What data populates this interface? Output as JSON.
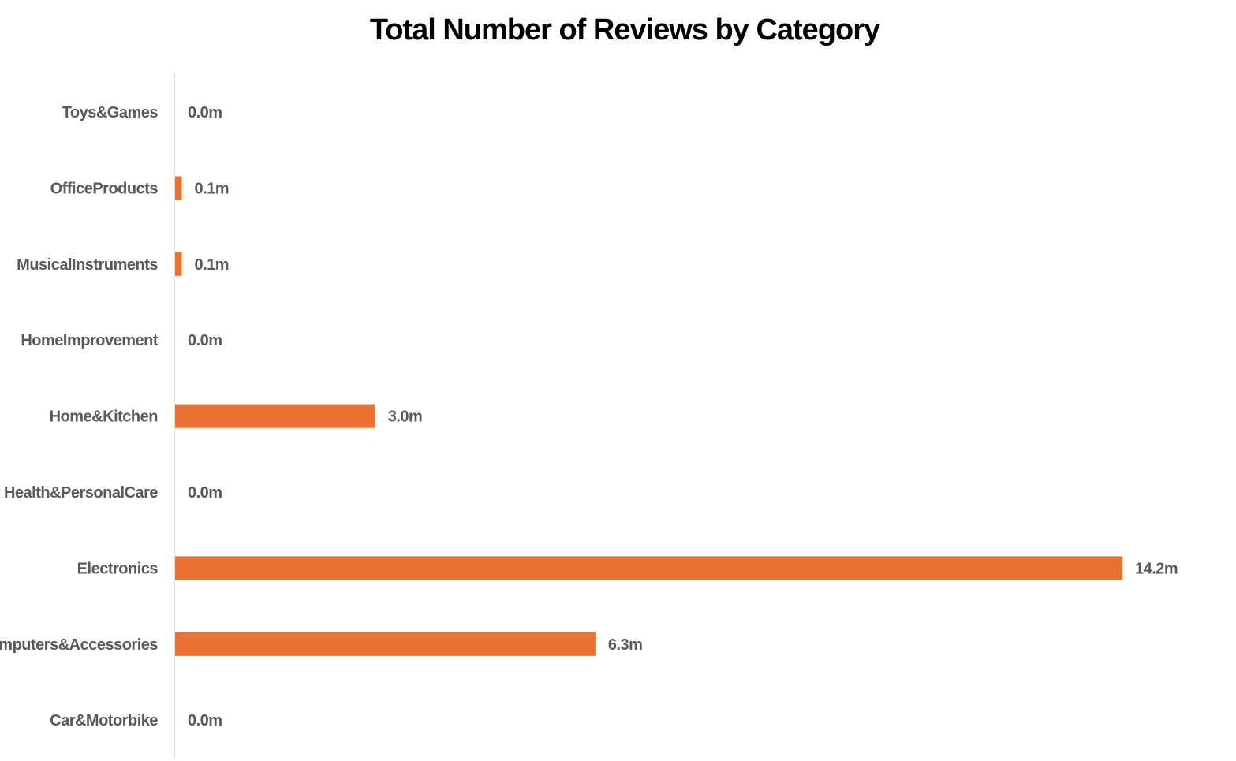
{
  "chart_data": {
    "type": "bar",
    "orientation": "horizontal",
    "title": "Total Number of Reviews by Category",
    "xlabel": "",
    "ylabel": "",
    "categories": [
      "Toys&Games",
      "OfficeProducts",
      "MusicalInstruments",
      "HomeImprovement",
      "Home&Kitchen",
      "Health&PersonalCare",
      "Electronics",
      "Computers&Accessories",
      "Car&Motorbike"
    ],
    "values": [
      0.0,
      0.1,
      0.1,
      0.0,
      3.0,
      0.0,
      14.2,
      6.3,
      0.0
    ],
    "data_labels": [
      "0.0m",
      "0.1m",
      "0.1m",
      "0.0m",
      "3.0m",
      "0.0m",
      "14.2m",
      "6.3m",
      "0.0m"
    ],
    "unit": "m",
    "xlim": [
      0,
      14.2
    ],
    "grid": false,
    "legend": "none",
    "colors": {
      "bar": "#E97132",
      "axis": "#D9D9D9",
      "label": "#595959",
      "title": "#000000"
    }
  }
}
